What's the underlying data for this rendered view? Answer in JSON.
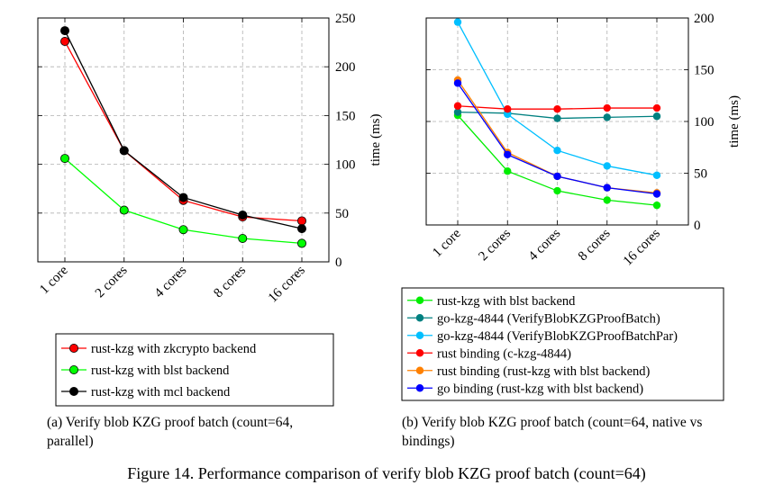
{
  "chart_data": [
    {
      "type": "line",
      "categories": [
        "1 core",
        "2 cores",
        "4 cores",
        "8 cores",
        "16 cores"
      ],
      "ylabel": "time (ms)",
      "ylim": [
        0,
        250
      ],
      "yticks": [
        0,
        50,
        100,
        150,
        200,
        250
      ],
      "grid": true,
      "legend_position": "bottom",
      "series": [
        {
          "name": "rust-kzg with zkcrypto backend",
          "color": "#ff0000",
          "values": [
            226,
            114,
            63,
            46,
            42
          ]
        },
        {
          "name": "rust-kzg with blst backend",
          "color": "#00ff00",
          "values": [
            106,
            53,
            33,
            24,
            19
          ]
        },
        {
          "name": "rust-kzg with mcl backend",
          "color": "#000000",
          "values": [
            237,
            114,
            66,
            48,
            34
          ]
        }
      ],
      "caption": "(a) Verify blob KZG proof batch (count=64, parallel)"
    },
    {
      "type": "line",
      "categories": [
        "1 core",
        "2 cores",
        "4 cores",
        "8 cores",
        "16 cores"
      ],
      "ylabel": "time (ms)",
      "ylim": [
        0,
        200
      ],
      "yticks": [
        0,
        50,
        100,
        150,
        200
      ],
      "grid": true,
      "legend_position": "bottom",
      "series": [
        {
          "name": "rust-kzg with blst backend",
          "color": "#00ee00",
          "values": [
            106,
            52,
            33,
            24,
            19
          ]
        },
        {
          "name": "go-kzg-4844 (VerifyBlobKZGProofBatch)",
          "color": "#008080",
          "values": [
            109,
            108,
            103,
            104,
            105
          ]
        },
        {
          "name": "go-kzg-4844 (VerifyBlobKZGProofBatchPar)",
          "color": "#00bfff",
          "values": [
            196,
            107,
            72,
            57,
            48
          ]
        },
        {
          "name": "rust binding (c-kzg-4844)",
          "color": "#ff0000",
          "values": [
            115,
            112,
            112,
            113,
            113
          ]
        },
        {
          "name": "rust binding (rust-kzg with blst backend)",
          "color": "#ff8000",
          "values": [
            140,
            70,
            47,
            36,
            31
          ]
        },
        {
          "name": "go binding (rust-kzg with blst backend)",
          "color": "#0000ff",
          "values": [
            137,
            68,
            47,
            36,
            30
          ]
        }
      ],
      "caption": "(b) Verify blob KZG proof batch (count=64, native vs bindings)"
    }
  ],
  "figure_caption": "Figure 14. Performance comparison of verify blob KZG proof batch (count=64)"
}
